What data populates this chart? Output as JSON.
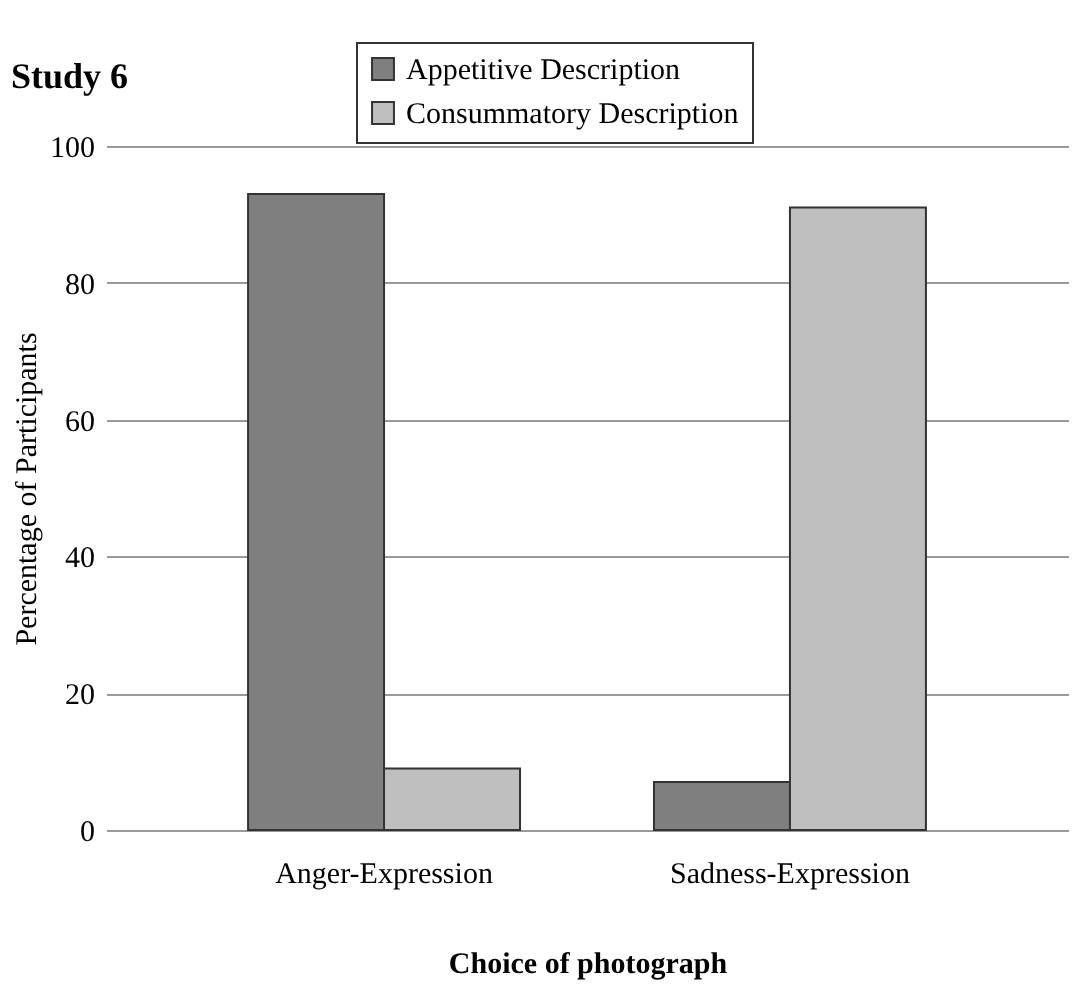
{
  "chart_data": {
    "type": "bar",
    "title": "Study 6",
    "xlabel": "Choice of photograph",
    "ylabel": "Percentage of Participants",
    "categories": [
      "Anger-Expression",
      "Sadness-Expression"
    ],
    "series": [
      {
        "name": "Appetitive Description",
        "color": "#7f7f7f",
        "values": [
          93,
          7
        ]
      },
      {
        "name": "Consummatory Description",
        "color": "#bfbfbf",
        "values": [
          9,
          91
        ]
      }
    ],
    "ylim": [
      0,
      100
    ],
    "yticks": [
      0,
      20,
      40,
      60,
      80,
      100
    ],
    "grid": "y",
    "legend": "top"
  }
}
